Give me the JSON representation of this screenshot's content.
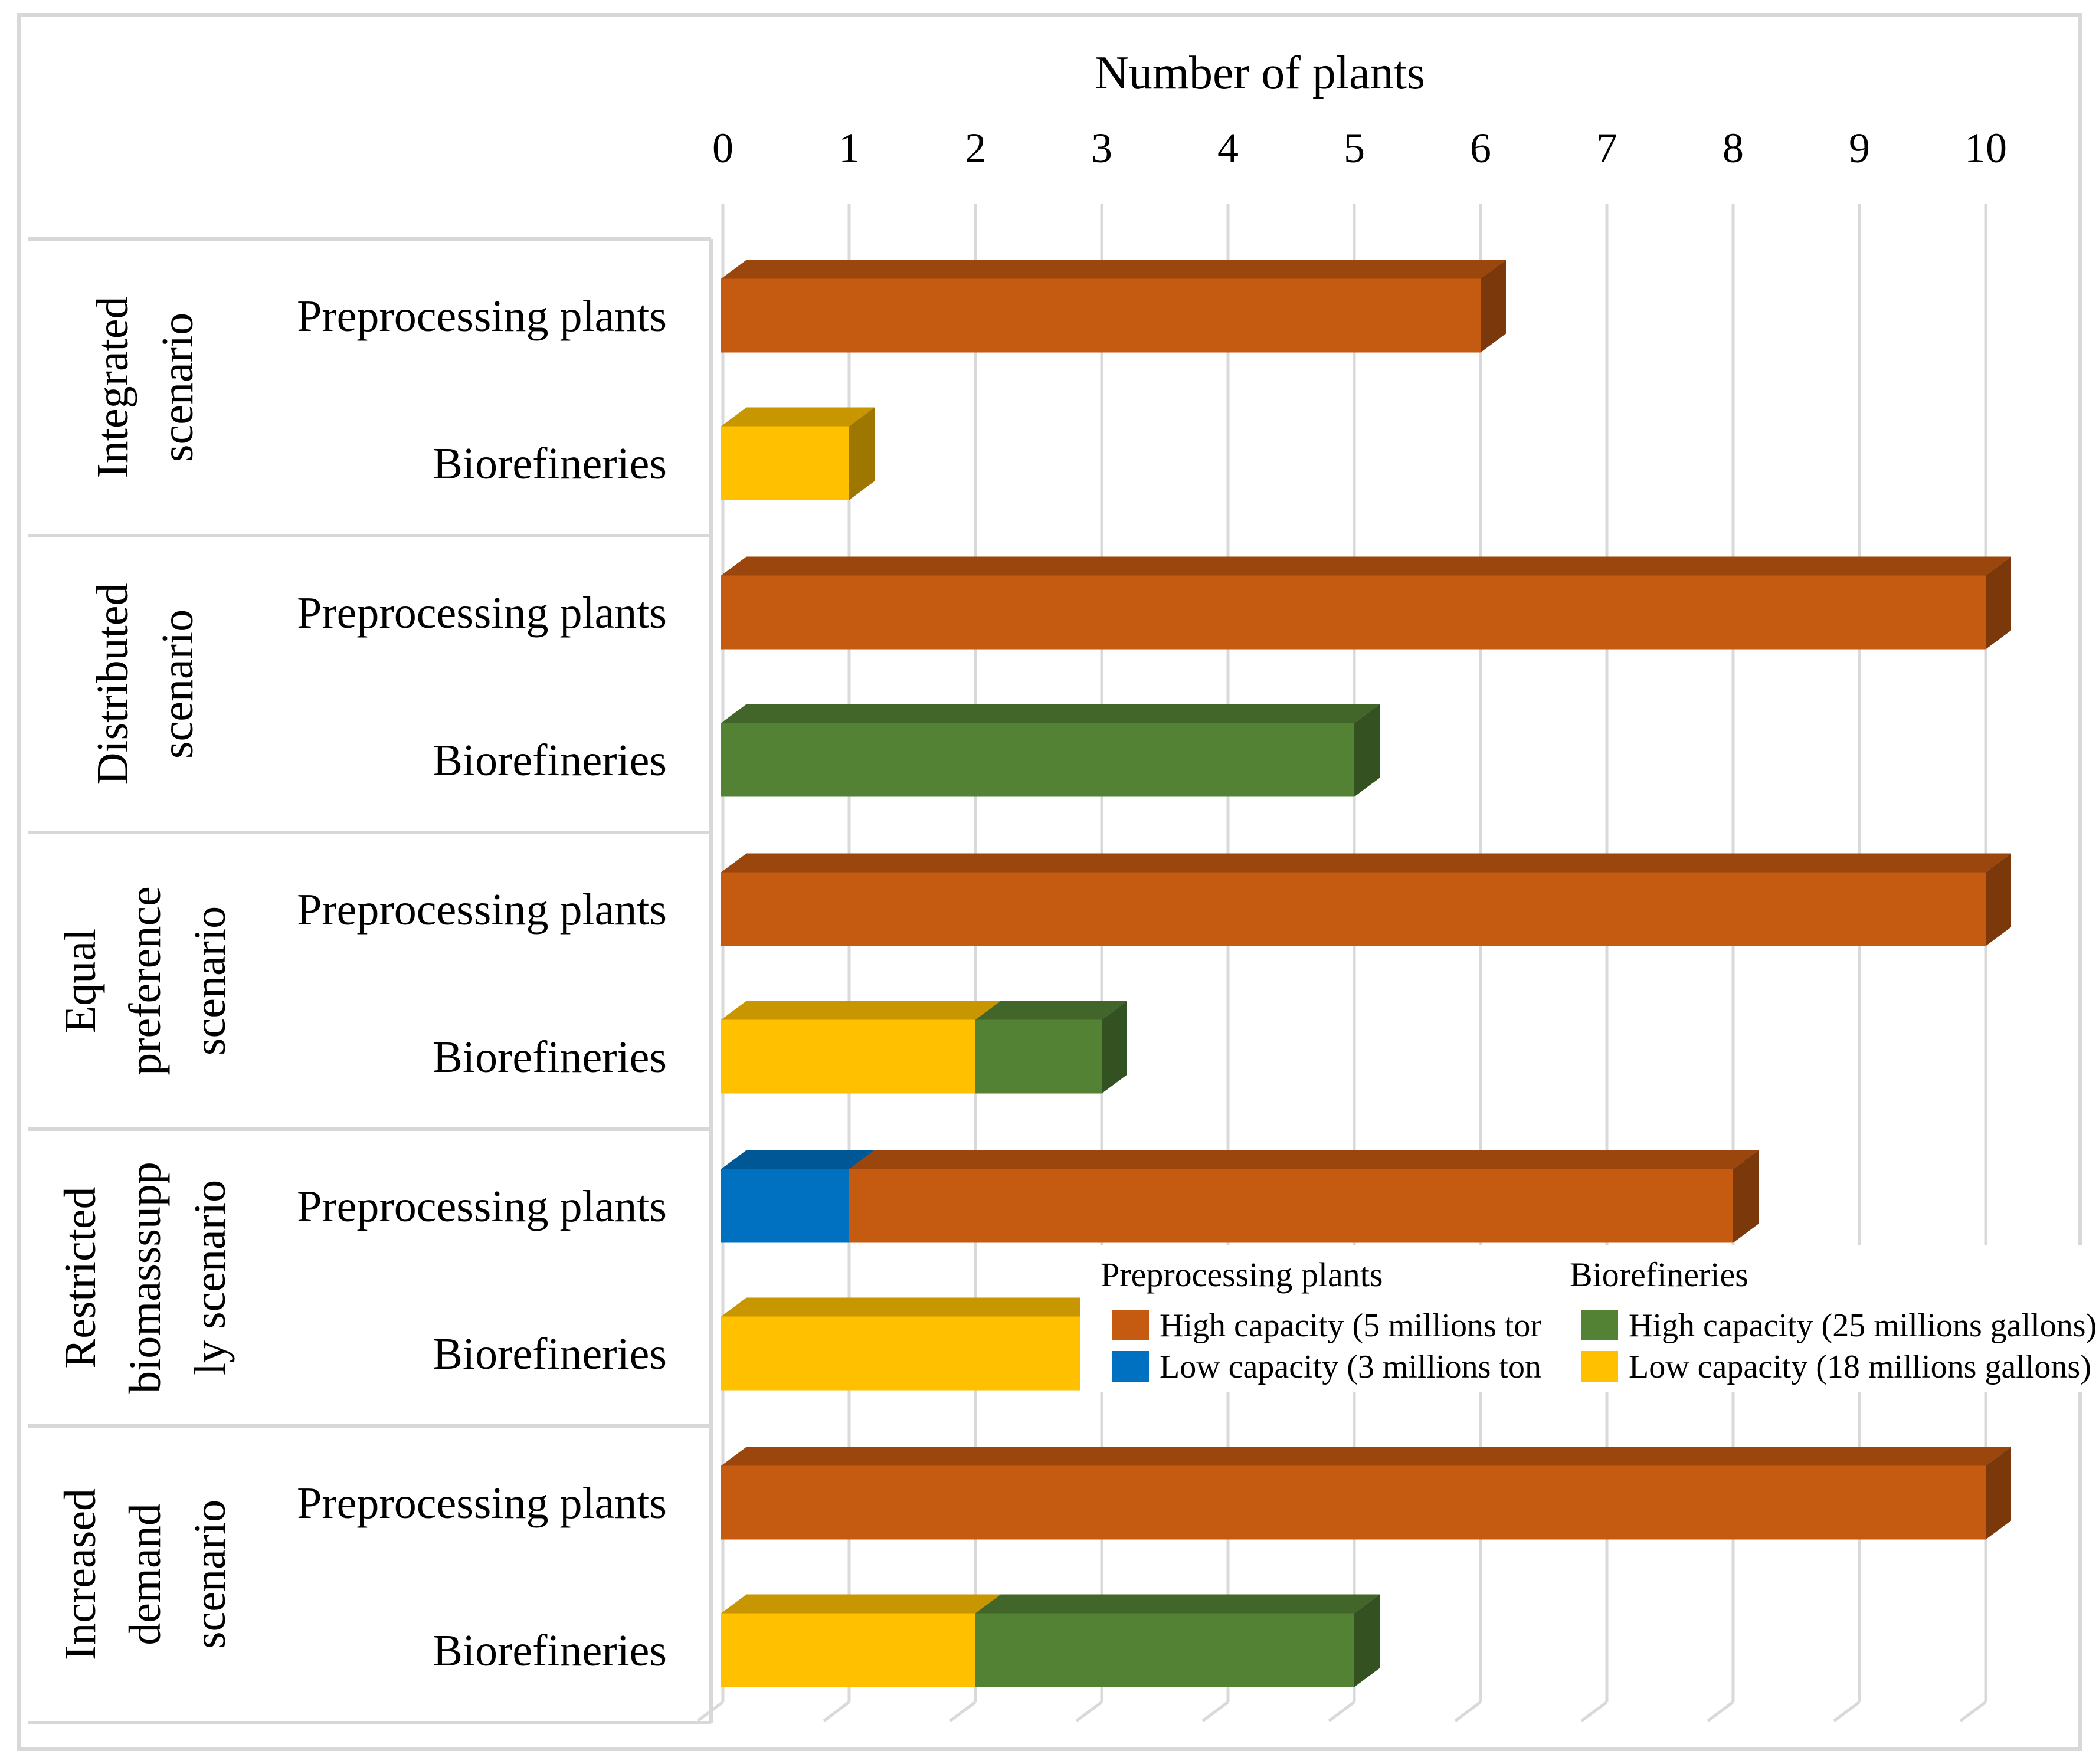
{
  "chart_data": {
    "type": "bar",
    "orientation": "horizontal",
    "stacked": true,
    "style": "3d",
    "xlabel": "Number of plants",
    "xlim": [
      0,
      10
    ],
    "xticks": [
      "0",
      "1",
      "2",
      "3",
      "4",
      "5",
      "6",
      "7",
      "8",
      "9",
      "10"
    ],
    "grid": true,
    "scenarios": [
      {
        "label_lines": [
          "Integrated",
          "scenario"
        ],
        "rows": [
          {
            "label": "Preprocessing plants",
            "segments": [
              {
                "series": "pp_high",
                "value": 6
              }
            ]
          },
          {
            "label": "Biorefineries",
            "segments": [
              {
                "series": "bio_low",
                "value": 1
              }
            ]
          }
        ]
      },
      {
        "label_lines": [
          "Distributed",
          "scenario"
        ],
        "rows": [
          {
            "label": "Preprocessing plants",
            "segments": [
              {
                "series": "pp_high",
                "value": 10
              }
            ]
          },
          {
            "label": "Biorefineries",
            "segments": [
              {
                "series": "bio_high",
                "value": 5
              }
            ]
          }
        ]
      },
      {
        "label_lines": [
          "Equal",
          "preference",
          "scenario"
        ],
        "rows": [
          {
            "label": "Preprocessing plants",
            "segments": [
              {
                "series": "pp_high",
                "value": 10
              }
            ]
          },
          {
            "label": "Biorefineries",
            "segments": [
              {
                "series": "bio_low",
                "value": 2
              },
              {
                "series": "bio_high",
                "value": 1
              }
            ]
          }
        ]
      },
      {
        "label_lines": [
          "Restricted",
          "biomasssupp",
          "ly scenario"
        ],
        "rows": [
          {
            "label": "Preprocessing plants",
            "segments": [
              {
                "series": "pp_low",
                "value": 1
              },
              {
                "series": "pp_high",
                "value": 7
              }
            ]
          },
          {
            "label": "Biorefineries",
            "segments": [
              {
                "series": "bio_low",
                "value": 3
              }
            ]
          }
        ]
      },
      {
        "label_lines": [
          "Increased",
          "demand",
          "scenario"
        ],
        "rows": [
          {
            "label": "Preprocessing plants",
            "segments": [
              {
                "series": "pp_high",
                "value": 10
              }
            ]
          },
          {
            "label": "Biorefineries",
            "segments": [
              {
                "series": "bio_low",
                "value": 2
              },
              {
                "series": "bio_high",
                "value": 3
              }
            ]
          }
        ]
      }
    ],
    "series": {
      "pp_high": {
        "name": "High capacity (5 millions tor",
        "color": "#C55A11"
      },
      "pp_low": {
        "name": "Low capacity (3 millions ton",
        "color": "#0070C0"
      },
      "bio_high": {
        "name": "High capacity (25 millions gallons)",
        "color": "#548235"
      },
      "bio_low": {
        "name": "Low capacity (18 millions gallons)",
        "color": "#FFC000"
      }
    },
    "legend": {
      "placement": "lower-right, overlapping plot",
      "groups": [
        {
          "title": "Preprocessing plants",
          "items": [
            "pp_high",
            "pp_low"
          ]
        },
        {
          "title": "Biorefineries",
          "items": [
            "bio_high",
            "bio_low"
          ]
        }
      ]
    }
  }
}
